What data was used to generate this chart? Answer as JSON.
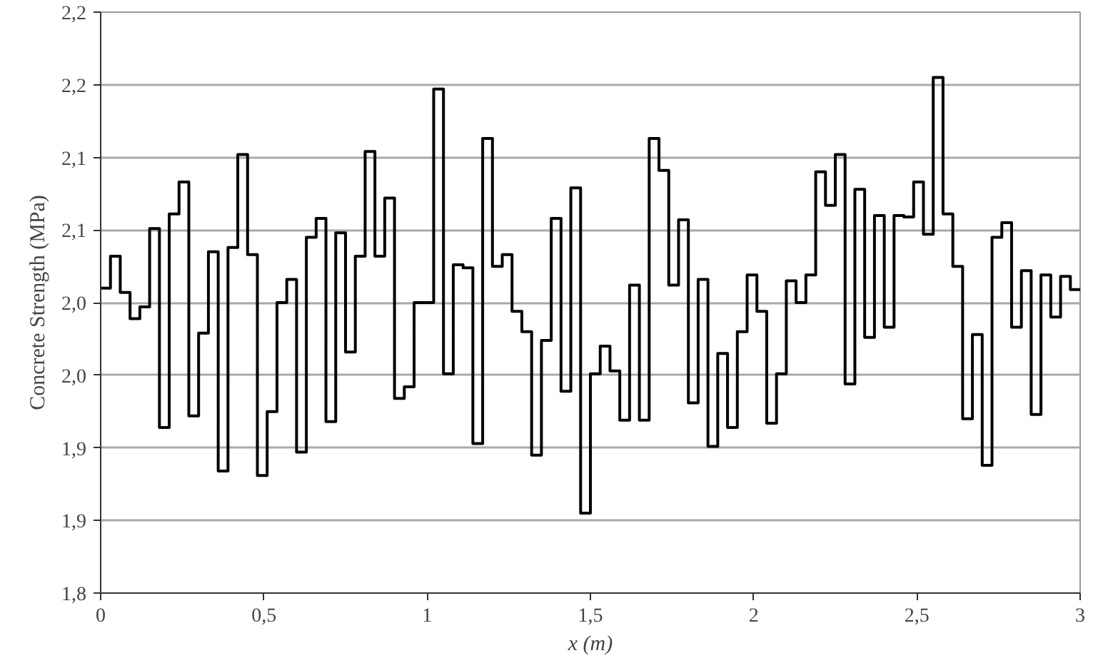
{
  "chart_data": {
    "type": "step",
    "xlabel": "x (m)",
    "ylabel": "Concrete Strength (MPa)",
    "x": [
      0,
      0.03,
      0.06,
      0.09,
      0.12,
      0.15,
      0.18,
      0.21,
      0.24,
      0.27,
      0.3,
      0.33,
      0.36,
      0.39,
      0.42,
      0.45,
      0.48,
      0.51,
      0.54,
      0.57,
      0.6,
      0.63,
      0.66,
      0.69,
      0.72,
      0.75,
      0.78,
      0.81,
      0.84,
      0.87,
      0.9,
      0.93,
      0.96,
      0.99,
      1.02,
      1.05,
      1.08,
      1.11,
      1.14,
      1.17,
      1.2,
      1.23,
      1.26,
      1.29,
      1.32,
      1.35,
      1.38,
      1.41,
      1.44,
      1.47,
      1.5,
      1.53,
      1.56,
      1.59,
      1.62,
      1.65,
      1.68,
      1.71,
      1.74,
      1.77,
      1.8,
      1.83,
      1.86,
      1.89,
      1.92,
      1.95,
      1.98,
      2.01,
      2.04,
      2.07,
      2.1,
      2.13,
      2.16,
      2.19,
      2.22,
      2.25,
      2.28,
      2.31,
      2.34,
      2.37,
      2.4,
      2.43,
      2.46,
      2.49,
      2.52,
      2.55,
      2.58,
      2.61,
      2.64,
      2.67,
      2.7,
      2.73,
      2.76,
      2.79,
      2.82,
      2.85,
      2.88,
      2.91,
      2.94,
      2.97,
      3.0
    ],
    "series": [
      {
        "color": "#000000",
        "values": [
          2.01,
          2.032,
          2.007,
          1.989,
          1.997,
          2.051,
          1.914,
          2.061,
          2.083,
          1.922,
          1.979,
          2.035,
          1.884,
          2.038,
          2.102,
          2.033,
          1.881,
          1.925,
          2.0,
          2.016,
          1.897,
          2.045,
          2.058,
          1.918,
          2.048,
          1.966,
          2.032,
          2.104,
          2.032,
          2.072,
          1.934,
          1.942,
          2.0,
          2.0,
          2.147,
          1.951,
          2.026,
          2.024,
          1.903,
          2.113,
          2.025,
          2.033,
          1.994,
          1.98,
          1.895,
          1.974,
          2.058,
          1.939,
          2.079,
          1.855,
          1.951,
          1.97,
          1.953,
          1.919,
          2.012,
          1.919,
          2.113,
          2.091,
          2.012,
          2.057,
          1.931,
          2.016,
          1.901,
          1.965,
          1.914,
          1.98,
          2.019,
          1.994,
          1.917,
          1.951,
          2.015,
          2.0,
          2.019,
          2.09,
          2.067,
          2.102,
          1.944,
          2.078,
          1.976,
          2.06,
          1.983,
          2.06,
          2.059,
          2.083,
          2.047,
          2.155,
          2.061,
          2.025,
          1.92,
          1.978,
          1.888,
          2.045,
          2.055,
          1.983,
          2.022,
          1.923,
          2.019,
          1.99,
          2.018,
          2.009,
          2.009
        ]
      }
    ],
    "xlim": [
      0,
      3
    ],
    "ylim": [
      1.8,
      2.2
    ],
    "xticks": [
      0,
      {
        "value": 0.5,
        "label": "0,5"
      },
      1,
      {
        "value": 1.5,
        "label": "1,5"
      },
      2,
      {
        "value": 2.5,
        "label": "2,5"
      },
      3
    ],
    "yticks": [
      {
        "value": 1.8,
        "label": "1,8"
      },
      {
        "value": 1.85,
        "label": "1,9"
      },
      {
        "value": 1.9,
        "label": "1,9"
      },
      {
        "value": 1.95,
        "label": "2,0"
      },
      {
        "value": 2.0,
        "label": "2,0"
      },
      {
        "value": 2.05,
        "label": "2,1"
      },
      {
        "value": 2.1,
        "label": "2,1"
      },
      {
        "value": 2.15,
        "label": "2,2"
      },
      {
        "value": 2.2,
        "label": "2,2"
      }
    ],
    "grid": "y",
    "marker": "none",
    "line_style": "solid"
  }
}
